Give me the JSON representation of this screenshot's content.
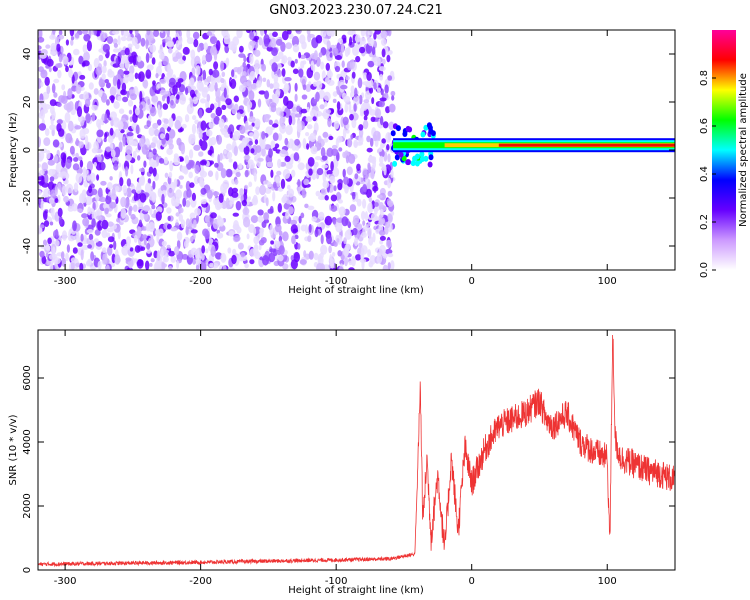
{
  "title": "GN03.2023.230.07.24.C21",
  "chart_data": [
    {
      "type": "heatmap",
      "xlabel": "Height of straight line (km)",
      "ylabel": "Frequency (Hz)",
      "xlim": [
        -320,
        150
      ],
      "ylim": [
        -50,
        50
      ],
      "x_ticks": [
        -300,
        -200,
        -100,
        0,
        100
      ],
      "y_ticks": [
        -40,
        -20,
        0,
        20,
        40
      ],
      "noise_region_x": [
        -320,
        -58
      ],
      "signal_band": {
        "x": [
          -58,
          150
        ],
        "frequency_hz": 2
      },
      "colorbar": {
        "label": "Normalized spectral amplitude",
        "range": [
          0.0,
          1.0
        ],
        "ticks": [
          "0.0",
          "0.2",
          "0.4",
          "0.6",
          "0.8"
        ],
        "colors": [
          "#ffffff",
          "#cc99ff",
          "#6600ff",
          "#0000ff",
          "#00ffff",
          "#00ff00",
          "#ffff00",
          "#ff0000",
          "#ff0099"
        ]
      }
    },
    {
      "type": "line",
      "xlabel": "Height of straight line (km)",
      "ylabel": "SNR (10 * v/v)",
      "xlim": [
        -320,
        150
      ],
      "ylim": [
        0,
        7500
      ],
      "x_ticks": [
        -300,
        -200,
        -100,
        0,
        100
      ],
      "y_ticks": [
        0,
        2000,
        4000,
        6000
      ],
      "color": "#ee3333",
      "series": [
        {
          "x": [
            -320,
            -280,
            -240,
            -200,
            -160,
            -120,
            -80,
            -60,
            -42,
            -40,
            -38,
            -36,
            -33,
            -30,
            -25,
            -20,
            -15,
            -10,
            -5,
            0,
            10,
            20,
            30,
            40,
            50,
            55,
            60,
            70,
            80,
            90,
            100,
            102,
            104,
            106,
            110,
            120,
            130,
            140,
            150
          ],
          "y": [
            180,
            200,
            220,
            240,
            270,
            300,
            330,
            350,
            500,
            2800,
            5800,
            1500,
            3500,
            1000,
            3000,
            600,
            3500,
            1200,
            3800,
            2700,
            3800,
            4500,
            4700,
            4900,
            5300,
            4700,
            4500,
            4900,
            4000,
            3700,
            3500,
            800,
            7500,
            4000,
            3500,
            3300,
            3100,
            3000,
            2800
          ]
        }
      ]
    }
  ]
}
